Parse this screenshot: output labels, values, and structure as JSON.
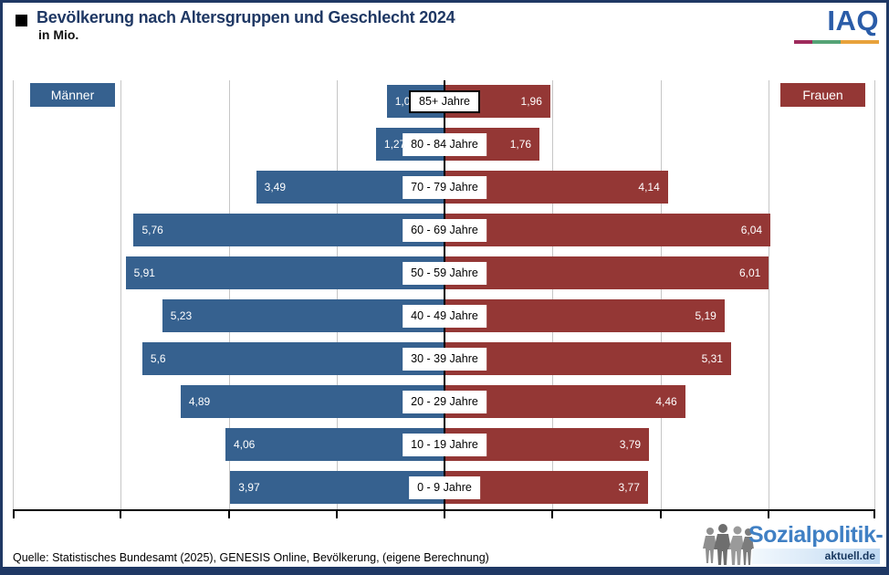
{
  "header": {
    "bullet": "■",
    "title": "Bevölkerung nach Altersgruppen und Geschlecht 2024",
    "subtitle": "in Mio.",
    "iaq_logo_text": "IAQ"
  },
  "legend": {
    "male": "Männer",
    "female": "Frauen"
  },
  "colors": {
    "male_bar": "#36618F",
    "female_bar": "#943735",
    "frame_navy": "#1F3864",
    "iaq_blue": "#2A5CA8",
    "iaq_underline": [
      "#9E2B5C",
      "#55A376",
      "#E8A23B"
    ],
    "gridline": "#C6C6C6",
    "brand_blue": "#4080C4",
    "brand_dark": "#17375E"
  },
  "chart_data": {
    "type": "bar",
    "subtype": "population_pyramid",
    "orientation": "horizontal",
    "title": "Bevölkerung nach Altersgruppen und Geschlecht 2024",
    "unit": "Mio.",
    "categories": [
      "85+ Jahre",
      "80 - 84 Jahre",
      "70 - 79 Jahre",
      "60 - 69 Jahre",
      "50 - 59 Jahre",
      "40 - 49 Jahre",
      "30 - 39 Jahre",
      "20 - 29 Jahre",
      "10 - 19 Jahre",
      "0 - 9 Jahre"
    ],
    "series": [
      {
        "name": "Männer",
        "side": "left",
        "values": [
          1.07,
          1.27,
          3.49,
          5.76,
          5.91,
          5.23,
          5.6,
          4.89,
          4.06,
          3.97
        ],
        "labels": [
          "1,07",
          "1,27",
          "3,49",
          "5,76",
          "5,91",
          "5,23",
          "5,6",
          "4,89",
          "4,06",
          "3,97"
        ]
      },
      {
        "name": "Frauen",
        "side": "right",
        "values": [
          1.96,
          1.76,
          4.14,
          6.04,
          6.01,
          5.19,
          5.31,
          4.46,
          3.79,
          3.77
        ],
        "labels": [
          "1,96",
          "1,76",
          "4,14",
          "6,04",
          "6,01",
          "5,19",
          "5,31",
          "4,46",
          "3,79",
          "3,77"
        ]
      }
    ],
    "axis_max_each_side": 8,
    "grid_step": 2,
    "gridlines": true,
    "highlighted_category": "85+ Jahre",
    "legend_position": "top-corners"
  },
  "footer": {
    "source": "Quelle:  Statistisches Bundesamt (2025),  GENESIS Online, Bevölkerung,  (eigene Berechnung)",
    "brand_line1": "Sozialpolitik-",
    "brand_line2": "aktuell.de"
  }
}
